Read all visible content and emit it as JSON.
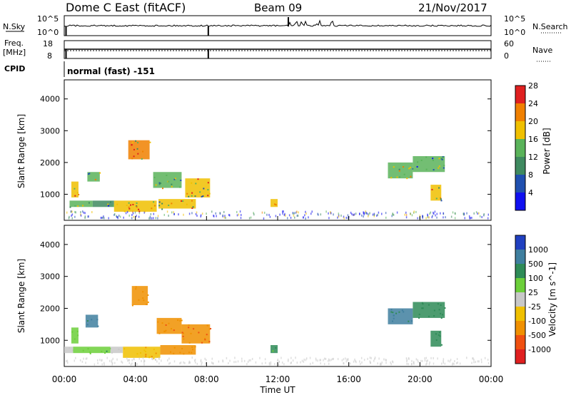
{
  "header": {
    "station": "Dome C East (fitACF)",
    "beam": "Beam 09",
    "date": "21/Nov/2017"
  },
  "top_panels": {
    "nsky_label": "N.Sky",
    "nsky_top_tick": "10^5",
    "nsky_bottom_tick": "10^0",
    "nsearch_label": "N.Search",
    "nsearch_top_tick": "10^5",
    "nsearch_bottom_tick": "10^0",
    "freq_label_1": "Freq.",
    "freq_label_2": "[MHz]",
    "freq_top_tick": "18",
    "freq_bottom_tick": "8",
    "nave_label": "Nave",
    "nave_top_tick": "60",
    "nave_bottom_tick": "0",
    "cpid_label": "CPID",
    "cpid_value": "normal (fast) -151"
  },
  "chart_data": [
    {
      "type": "heatmap",
      "title": "",
      "xlabel": "",
      "ylabel": "Slant Range [km]",
      "colorbar_label": "Power [dB]",
      "colorbar_ticks": [
        "4",
        "8",
        "12",
        "16",
        "20",
        "24",
        "28"
      ],
      "colorbar_colors": [
        "#1010f0",
        "#2050b0",
        "#3f8a60",
        "#5ab35a",
        "#f0c000",
        "#f08000",
        "#e02020"
      ],
      "ylim": [
        180,
        4600
      ],
      "yticks": [
        "1000",
        "2000",
        "3000",
        "4000"
      ],
      "xlim": [
        "00:00",
        "24:00"
      ],
      "echo_regions": [
        {
          "t_start": 0.3,
          "t_end": 1.6,
          "range_min": 600,
          "range_max": 800,
          "value": 14
        },
        {
          "t_start": 1.6,
          "t_end": 2.8,
          "range_min": 600,
          "range_max": 800,
          "value": 10
        },
        {
          "t_start": 2.8,
          "t_end": 5.2,
          "range_min": 450,
          "range_max": 800,
          "value": 18
        },
        {
          "t_start": 5.3,
          "t_end": 7.4,
          "range_min": 550,
          "range_max": 850,
          "value": 16
        },
        {
          "t_start": 6.8,
          "t_end": 8.2,
          "range_min": 900,
          "range_max": 1500,
          "value": 18
        },
        {
          "t_start": 5.0,
          "t_end": 6.6,
          "range_min": 1200,
          "range_max": 1700,
          "value": 12
        },
        {
          "t_start": 1.3,
          "t_end": 2.0,
          "range_min": 1400,
          "range_max": 1700,
          "value": 14
        },
        {
          "t_start": 3.6,
          "t_end": 4.8,
          "range_min": 2100,
          "range_max": 2700,
          "value": 22
        },
        {
          "t_start": 0.4,
          "t_end": 0.8,
          "range_min": 900,
          "range_max": 1400,
          "value": 16
        },
        {
          "t_start": 11.6,
          "t_end": 12.0,
          "range_min": 600,
          "range_max": 850,
          "value": 18
        },
        {
          "t_start": 18.2,
          "t_end": 19.6,
          "range_min": 1500,
          "range_max": 2000,
          "value": 14
        },
        {
          "t_start": 19.6,
          "t_end": 21.4,
          "range_min": 1700,
          "range_max": 2200,
          "value": 12
        },
        {
          "t_start": 20.6,
          "t_end": 21.2,
          "range_min": 800,
          "range_max": 1300,
          "value": 16
        }
      ]
    },
    {
      "type": "heatmap",
      "title": "",
      "xlabel": "Time UT",
      "ylabel": "Slant Range [km]",
      "colorbar_label": "Velocity [m s^-1]",
      "colorbar_ticks": [
        "1000",
        "500",
        "100",
        "25",
        "-25",
        "-100",
        "-500",
        "-1000"
      ],
      "colorbar_colors": [
        "#2040c0",
        "#3f7f9f",
        "#2e8b57",
        "#6ccf3a",
        "#c8c8c8",
        "#f0c000",
        "#f09000",
        "#f05010",
        "#e02020"
      ],
      "ylim": [
        180,
        4600
      ],
      "yticks": [
        "1000",
        "2000",
        "3000",
        "4000"
      ],
      "xlim": [
        "00:00",
        "24:00"
      ],
      "xticks": [
        "00:00",
        "04:00",
        "08:00",
        "12:00",
        "16:00",
        "20:00",
        "00:00"
      ],
      "echo_regions": [
        {
          "t_start": 0.0,
          "t_end": 0.5,
          "range_min": 600,
          "range_max": 800,
          "value": 0
        },
        {
          "t_start": 0.5,
          "t_end": 2.6,
          "range_min": 600,
          "range_max": 800,
          "value": 80
        },
        {
          "t_start": 2.6,
          "t_end": 3.3,
          "range_min": 600,
          "range_max": 800,
          "value": 0
        },
        {
          "t_start": 3.3,
          "t_end": 5.4,
          "range_min": 450,
          "range_max": 800,
          "value": -80
        },
        {
          "t_start": 5.4,
          "t_end": 7.4,
          "range_min": 550,
          "range_max": 850,
          "value": -300
        },
        {
          "t_start": 6.6,
          "t_end": 8.2,
          "range_min": 900,
          "range_max": 1500,
          "value": -500
        },
        {
          "t_start": 5.2,
          "t_end": 6.6,
          "range_min": 1200,
          "range_max": 1700,
          "value": -400
        },
        {
          "t_start": 1.2,
          "t_end": 1.9,
          "range_min": 1400,
          "range_max": 1800,
          "value": 600
        },
        {
          "t_start": 3.8,
          "t_end": 4.7,
          "range_min": 2100,
          "range_max": 2700,
          "value": -300
        },
        {
          "t_start": 0.4,
          "t_end": 0.8,
          "range_min": 900,
          "range_max": 1400,
          "value": 80
        },
        {
          "t_start": 11.6,
          "t_end": 12.0,
          "range_min": 600,
          "range_max": 850,
          "value": 150
        },
        {
          "t_start": 18.2,
          "t_end": 19.6,
          "range_min": 1500,
          "range_max": 2000,
          "value": 500
        },
        {
          "t_start": 19.6,
          "t_end": 21.4,
          "range_min": 1700,
          "range_max": 2200,
          "value": 200
        },
        {
          "t_start": 20.6,
          "t_end": 21.2,
          "range_min": 800,
          "range_max": 1300,
          "value": 150
        }
      ]
    }
  ]
}
